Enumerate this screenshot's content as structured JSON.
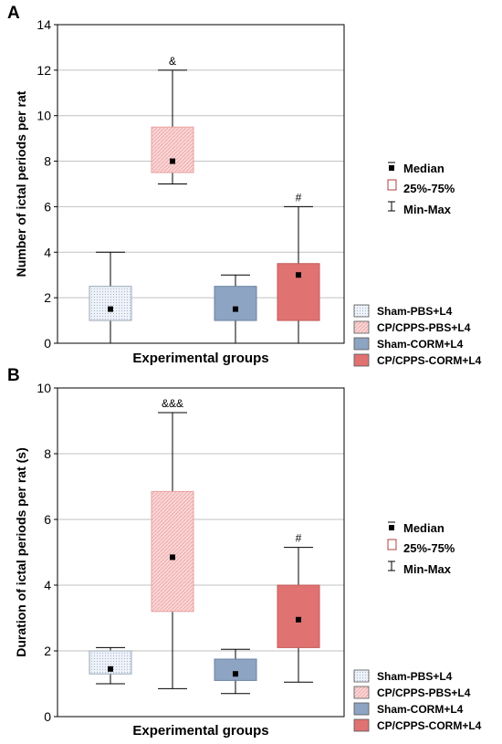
{
  "figure": {
    "legend_stats": {
      "median": "Median",
      "iqr": "25%-75%",
      "range": "Min-Max"
    },
    "group_styles": [
      {
        "fill": "#e8eef7",
        "edge": "#9aa7b8",
        "pattern": "dots"
      },
      {
        "fill": "#fbd3d3",
        "edge": "#e8a0a0",
        "pattern": "hatch"
      },
      {
        "fill": "#8da4c2",
        "edge": "#6b83a4",
        "pattern": "none"
      },
      {
        "fill": "#e07272",
        "edge": "#c45a5a",
        "pattern": "none"
      }
    ]
  },
  "chart_data": [
    {
      "panel": "A",
      "type": "box",
      "xlabel": "Experimental groups",
      "ylabel": "Number of ictal periods per rat",
      "ylim": [
        0,
        14
      ],
      "yticks": [
        0,
        2,
        4,
        6,
        8,
        10,
        12,
        14
      ],
      "grid": true,
      "legend_position": "right",
      "groups": [
        {
          "name": "Sham-PBS+L4",
          "min": 0,
          "q1": 1,
          "median": 1.5,
          "q3": 2.5,
          "max": 4,
          "annotation": ""
        },
        {
          "name": "CP/CPPS-PBS+L4",
          "min": 7,
          "q1": 7.5,
          "median": 8,
          "q3": 9.5,
          "max": 12,
          "annotation": "&"
        },
        {
          "name": "Sham-CORM+L4",
          "min": 0,
          "q1": 1,
          "median": 1.5,
          "q3": 2.5,
          "max": 3,
          "annotation": ""
        },
        {
          "name": "CP/CPPS-CORM+L4",
          "min": 0,
          "q1": 1,
          "median": 3,
          "q3": 3.5,
          "max": 6,
          "annotation": "#"
        }
      ]
    },
    {
      "panel": "B",
      "type": "box",
      "xlabel": "Experimental groups",
      "ylabel": "Duration of ictal periods per rat (s)",
      "ylim": [
        0,
        10
      ],
      "yticks": [
        0,
        2,
        4,
        6,
        8,
        10
      ],
      "grid": true,
      "legend_position": "right",
      "groups": [
        {
          "name": "Sham-PBS+L4",
          "min": 1.0,
          "q1": 1.3,
          "median": 1.45,
          "q3": 2.0,
          "max": 2.1,
          "annotation": ""
        },
        {
          "name": "CP/CPPS-PBS+L4",
          "min": 0.85,
          "q1": 3.2,
          "median": 4.85,
          "q3": 6.85,
          "max": 9.25,
          "annotation": "&&&"
        },
        {
          "name": "Sham-CORM+L4",
          "min": 0.7,
          "q1": 1.1,
          "median": 1.3,
          "q3": 1.75,
          "max": 2.05,
          "annotation": ""
        },
        {
          "name": "CP/CPPS-CORM+L4",
          "min": 1.05,
          "q1": 2.1,
          "median": 2.95,
          "q3": 4.0,
          "max": 5.15,
          "annotation": "#"
        }
      ]
    }
  ]
}
